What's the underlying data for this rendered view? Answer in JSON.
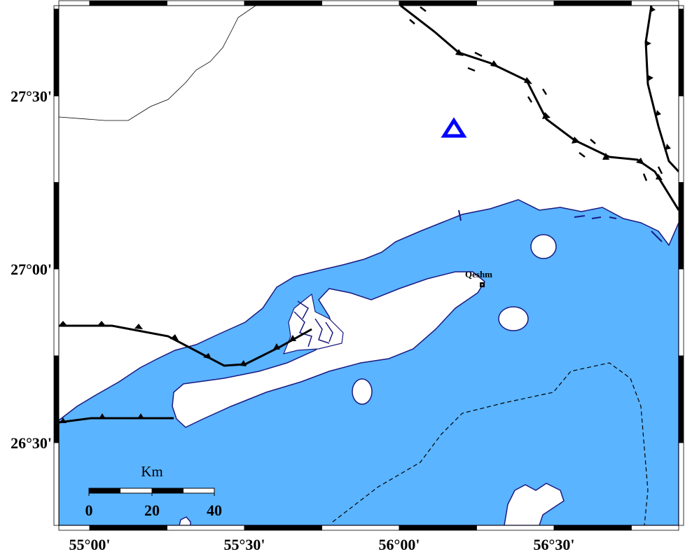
{
  "map": {
    "colors": {
      "sea": "#5AB4FF",
      "land": "#FFFFFF",
      "coast": "#1A1A80",
      "station": "#0000FF",
      "fault": "#000000"
    },
    "lat_labels": [
      "27°30'",
      "27°00'",
      "26°30'"
    ],
    "lon_labels": [
      "55°00'",
      "55°30'",
      "56°00'",
      "56°30'"
    ],
    "place_label": "Qeshm",
    "station_marker": "inverted-hollow-triangle",
    "scale_bar": {
      "unit": "Km",
      "labels": [
        "0",
        "20",
        "40"
      ]
    }
  }
}
